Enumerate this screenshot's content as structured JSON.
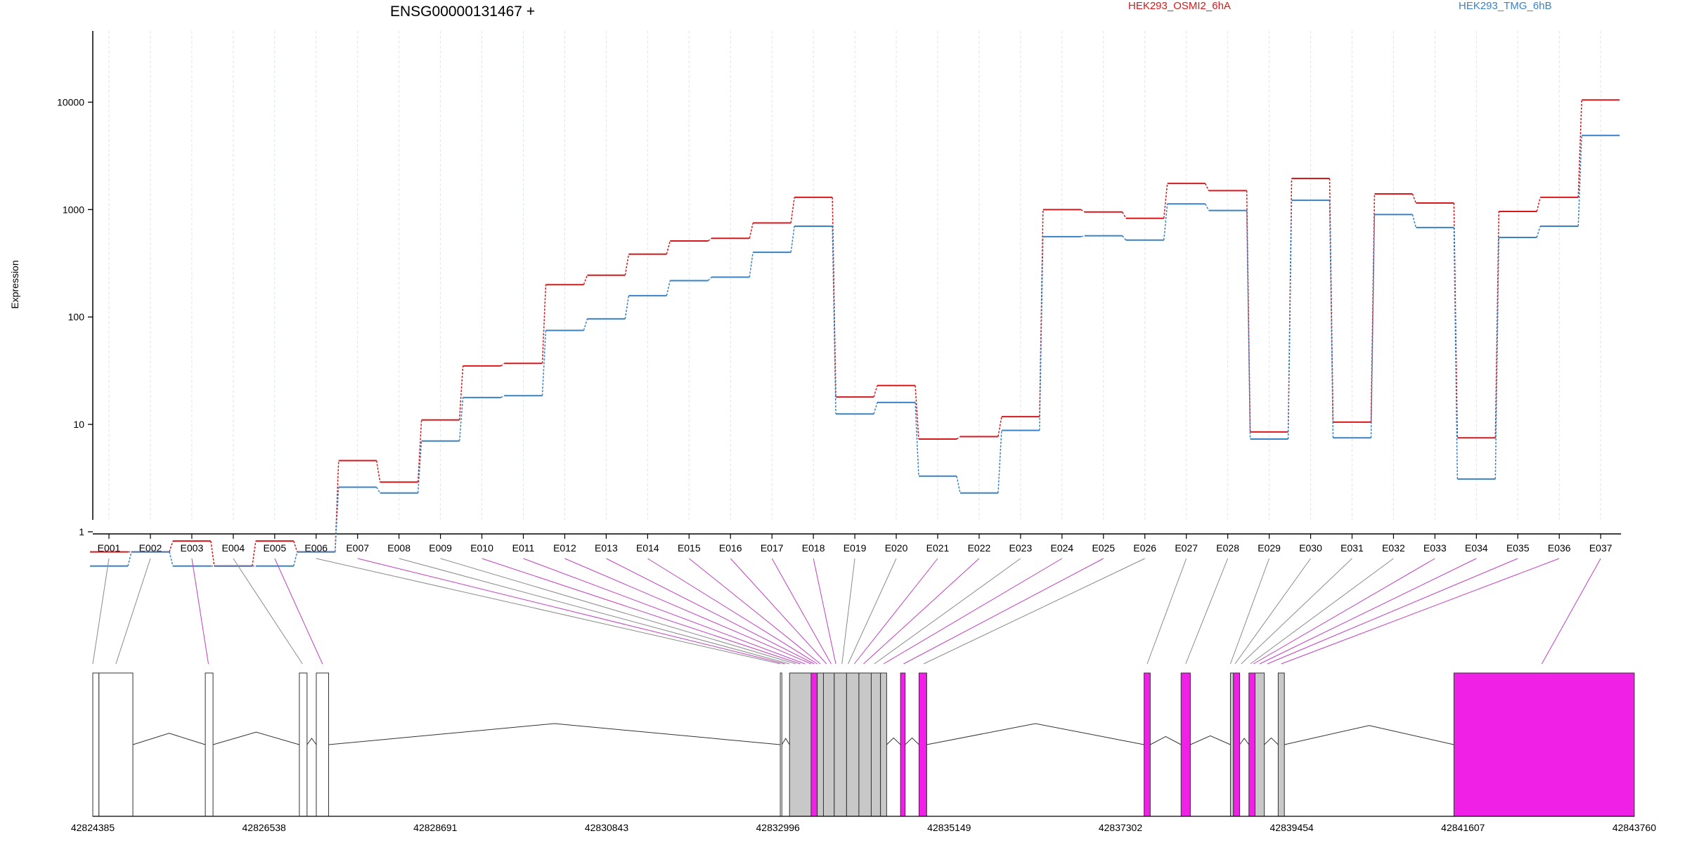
{
  "chart_data": {
    "type": "line",
    "title": "ENSG00000131467 +",
    "ylabel": "Expression",
    "xlabel": "",
    "yscale": "log",
    "ylim": [
      0.5,
      13000
    ],
    "yticks": [
      1,
      10,
      100,
      1000,
      10000
    ],
    "ytick_labels": [
      "1",
      "10",
      "100",
      "1000",
      "10000"
    ],
    "grid": "vertical",
    "legend_position": "top-right",
    "categories": [
      "E001",
      "E002",
      "E003",
      "E004",
      "E005",
      "E006",
      "E007",
      "E008",
      "E009",
      "E010",
      "E011",
      "E012",
      "E013",
      "E014",
      "E015",
      "E016",
      "E017",
      "E018",
      "E019",
      "E020",
      "E021",
      "E022",
      "E023",
      "E024",
      "E025",
      "E026",
      "E027",
      "E028",
      "E029",
      "E030",
      "E031",
      "E032",
      "E033",
      "E034",
      "E035",
      "E036",
      "E037"
    ],
    "series": [
      {
        "name": "HEK293_OSMI2_6hA",
        "color": "#d7191c",
        "values": [
          0.65,
          0.65,
          0.82,
          0.48,
          0.82,
          0.65,
          4.6,
          2.9,
          11,
          35,
          37,
          200,
          245,
          385,
          510,
          540,
          750,
          1300,
          18,
          23,
          7.3,
          7.7,
          11.8,
          1000,
          950,
          830,
          1750,
          1500,
          8.5,
          1950,
          10.5,
          1400,
          1150,
          7.5,
          960,
          1300,
          10500
        ]
      },
      {
        "name": "HEK293_TMG_6hB",
        "color": "#3a82c4",
        "values": [
          0.48,
          0.65,
          0.48,
          0.48,
          0.48,
          0.65,
          2.6,
          2.3,
          7,
          17.8,
          18.5,
          75,
          96,
          158,
          218,
          235,
          400,
          700,
          12.5,
          16,
          3.3,
          2.3,
          8.8,
          560,
          570,
          520,
          1130,
          980,
          7.3,
          1220,
          7.5,
          900,
          680,
          3.1,
          550,
          700,
          4900
        ]
      }
    ],
    "gene_model": {
      "coordinate_labels": [
        "42824385",
        "42826538",
        "42828691",
        "42830843",
        "42832996",
        "42835149",
        "42837302",
        "42839454",
        "42841607",
        "42843760"
      ],
      "exon_fill_colors": {
        "unchanged": "#ffffff",
        "shared": "#c8c8c8",
        "differential": "#f020e6"
      }
    }
  }
}
